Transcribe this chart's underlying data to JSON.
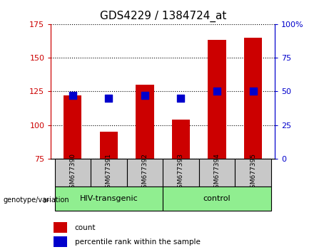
{
  "title": "GDS4229 / 1384724_at",
  "samples": [
    "GSM677390",
    "GSM677391",
    "GSM677392",
    "GSM677393",
    "GSM677394",
    "GSM677395"
  ],
  "red_values": [
    122,
    95,
    130,
    104,
    163,
    165
  ],
  "blue_values": [
    47,
    45,
    47,
    45,
    50,
    50
  ],
  "ylim_left": [
    75,
    175
  ],
  "ylim_right": [
    0,
    100
  ],
  "left_ticks": [
    75,
    100,
    125,
    150,
    175
  ],
  "right_ticks": [
    0,
    25,
    50,
    75,
    100
  ],
  "right_tick_labels": [
    "0",
    "25",
    "50",
    "75",
    "100%"
  ],
  "group1_label": "HIV-transgenic",
  "group2_label": "control",
  "genotype_label": "genotype/variation",
  "legend_red_label": "count",
  "legend_blue_label": "percentile rank within the sample",
  "bar_color": "#cc0000",
  "dot_color": "#0000cc",
  "group_bg_color": "#90EE90",
  "sample_bg_color": "#c8c8c8",
  "bar_width": 0.5,
  "dot_size": 50,
  "title_fontsize": 11
}
